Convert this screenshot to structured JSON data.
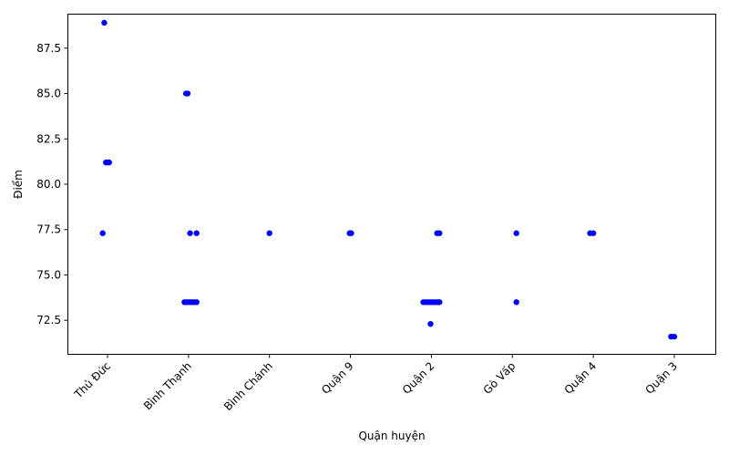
{
  "chart_data": {
    "type": "scatter",
    "title": "",
    "xlabel": "Quận huyện",
    "ylabel": "Điểm",
    "grid": false,
    "legend": "none",
    "point_color": "#0000ff",
    "categories": [
      "Thủ Đức",
      "Bình Thạnh",
      "Bình Chánh",
      "Quận 9",
      "Quận 2",
      "Gò Vấp",
      "Quận 4",
      "Quận 3"
    ],
    "y_ticks": [
      "72.5",
      "75.0",
      "77.5",
      "80.0",
      "82.5",
      "85.0",
      "87.5"
    ],
    "ylim": [
      70.65,
      89.35
    ],
    "points": [
      {
        "category": "Thủ Đức",
        "jitter": -0.04,
        "y": 88.9
      },
      {
        "category": "Thủ Đức",
        "jitter": -0.02,
        "y": 81.2
      },
      {
        "category": "Thủ Đức",
        "jitter": 0.0,
        "y": 81.2
      },
      {
        "category": "Thủ Đức",
        "jitter": 0.02,
        "y": 81.2
      },
      {
        "category": "Thủ Đức",
        "jitter": -0.06,
        "y": 77.3
      },
      {
        "category": "Bình Thạnh",
        "jitter": -0.03,
        "y": 85.0
      },
      {
        "category": "Bình Thạnh",
        "jitter": -0.01,
        "y": 85.0
      },
      {
        "category": "Bình Thạnh",
        "jitter": 0.02,
        "y": 77.3
      },
      {
        "category": "Bình Thạnh",
        "jitter": 0.1,
        "y": 77.3
      },
      {
        "category": "Bình Thạnh",
        "jitter": -0.05,
        "y": 73.5
      },
      {
        "category": "Bình Thạnh",
        "jitter": -0.02,
        "y": 73.5
      },
      {
        "category": "Bình Thạnh",
        "jitter": 0.01,
        "y": 73.5
      },
      {
        "category": "Bình Thạnh",
        "jitter": 0.04,
        "y": 73.5
      },
      {
        "category": "Bình Thạnh",
        "jitter": 0.07,
        "y": 73.5
      },
      {
        "category": "Bình Thạnh",
        "jitter": 0.1,
        "y": 73.5
      },
      {
        "category": "Bình Chánh",
        "jitter": 0.0,
        "y": 77.3
      },
      {
        "category": "Quận 9",
        "jitter": -0.01,
        "y": 77.3
      },
      {
        "category": "Quận 9",
        "jitter": 0.01,
        "y": 77.3
      },
      {
        "category": "Quận 2",
        "jitter": 0.07,
        "y": 77.3
      },
      {
        "category": "Quận 2",
        "jitter": 0.1,
        "y": 77.3
      },
      {
        "category": "Quận 2",
        "jitter": -0.1,
        "y": 73.5
      },
      {
        "category": "Quận 2",
        "jitter": -0.07,
        "y": 73.5
      },
      {
        "category": "Quận 2",
        "jitter": -0.04,
        "y": 73.5
      },
      {
        "category": "Quận 2",
        "jitter": -0.01,
        "y": 73.5
      },
      {
        "category": "Quận 2",
        "jitter": 0.02,
        "y": 73.5
      },
      {
        "category": "Quận 2",
        "jitter": 0.05,
        "y": 73.5
      },
      {
        "category": "Quận 2",
        "jitter": 0.08,
        "y": 73.5
      },
      {
        "category": "Quận 2",
        "jitter": 0.1,
        "y": 73.5
      },
      {
        "category": "Quận 2",
        "jitter": -0.01,
        "y": 72.3
      },
      {
        "category": "Gò Vấp",
        "jitter": 0.05,
        "y": 77.3
      },
      {
        "category": "Gò Vấp",
        "jitter": 0.05,
        "y": 73.5
      },
      {
        "category": "Quận 4",
        "jitter": -0.04,
        "y": 77.3
      },
      {
        "category": "Quận 4",
        "jitter": 0.0,
        "y": 77.3
      },
      {
        "category": "Quận 3",
        "jitter": -0.04,
        "y": 71.6
      },
      {
        "category": "Quận 3",
        "jitter": 0.0,
        "y": 71.6
      }
    ]
  }
}
